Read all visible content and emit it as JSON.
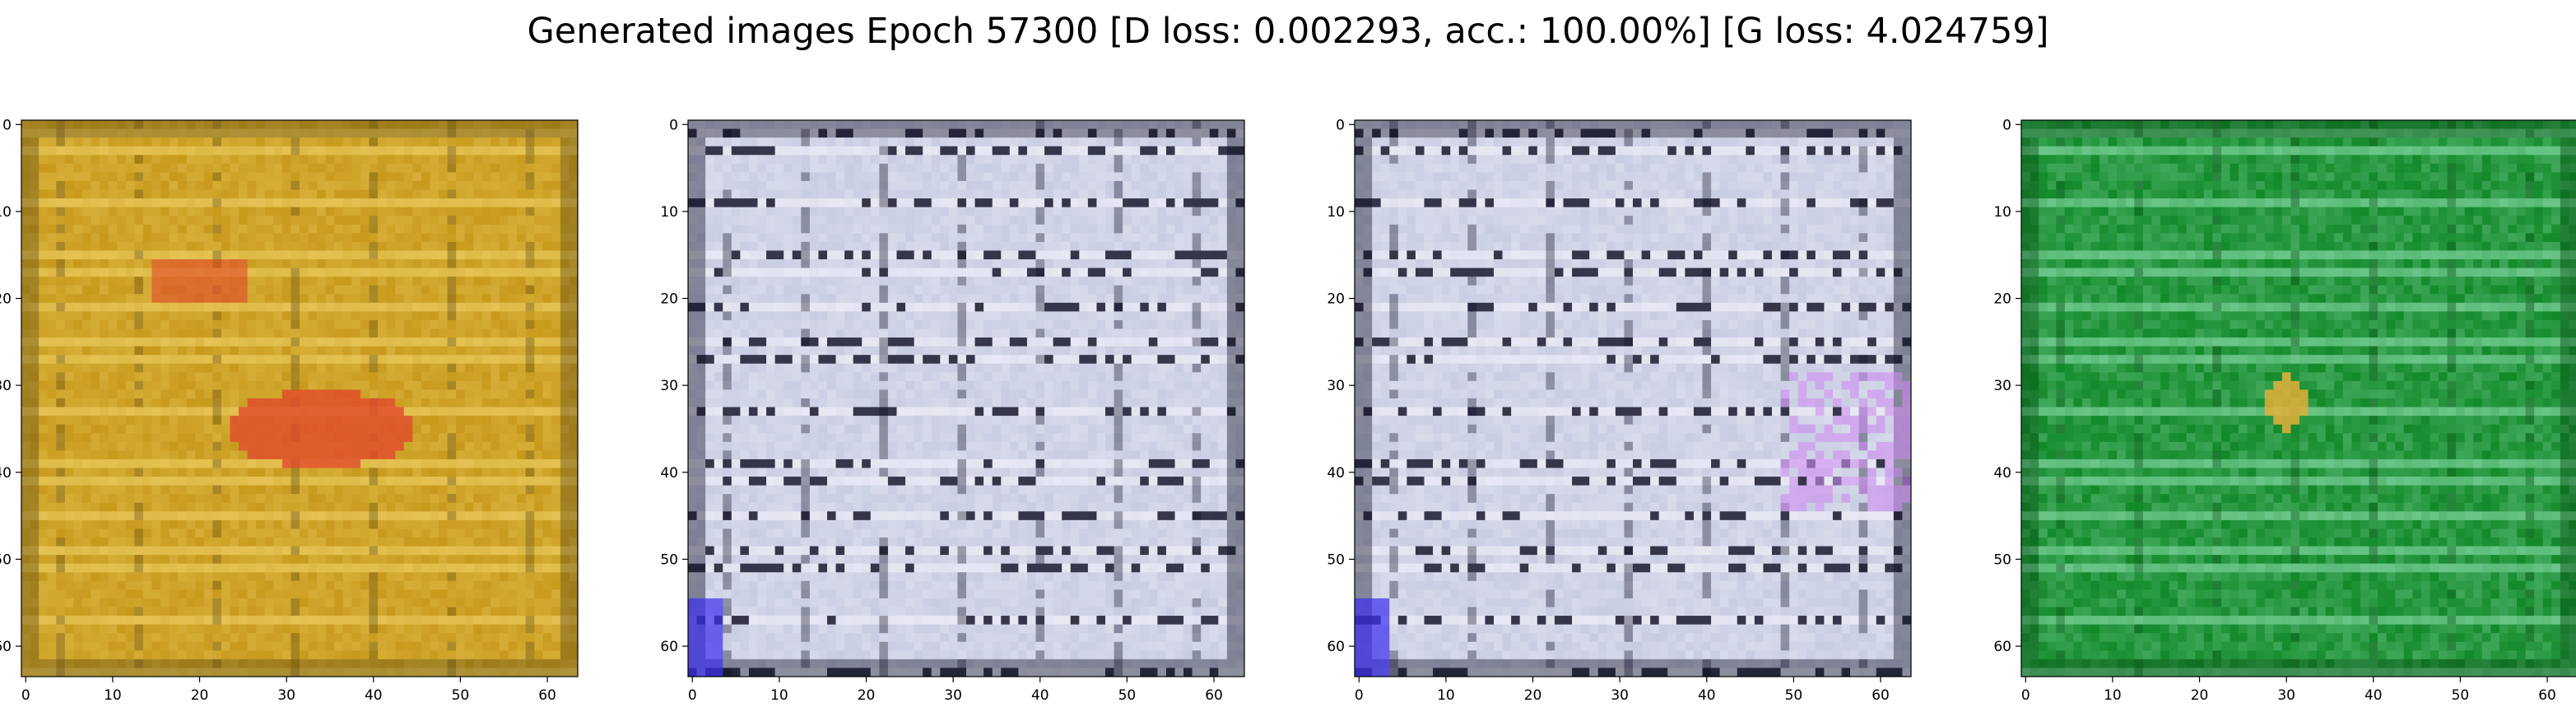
{
  "figure": {
    "title": "Generated images Epoch 57300 [D loss: 0.002293, acc.: 100.00%] [G loss: 4.024759]"
  },
  "axes": {
    "x_ticks": [
      "0",
      "10",
      "20",
      "30",
      "40",
      "50",
      "60"
    ],
    "y_ticks": [
      "0",
      "10",
      "20",
      "30",
      "40",
      "50",
      "60"
    ],
    "x_range": [
      -0.5,
      63.5
    ],
    "y_range": [
      -0.5,
      63.5
    ],
    "image_size": 64
  },
  "panels": [
    {
      "name": "generated-image-1",
      "base_color": "#c79a1c",
      "accent_color": "#e2492b",
      "highlight_color": "#f1d36a",
      "shadow_color": "#5e4a12"
    },
    {
      "name": "generated-image-2",
      "base_color": "#c9cde2",
      "accent_color": "#3b2ef0",
      "highlight_color": "#f4f4fa",
      "shadow_color": "#0a0a20"
    },
    {
      "name": "generated-image-3",
      "base_color": "#c9cde2",
      "accent_color": "#3b2ef0",
      "highlight_color": "#f4f4fa",
      "shadow_color": "#0a0a20"
    },
    {
      "name": "generated-image-4",
      "base_color": "#13892a",
      "accent_color": "#e3b03a",
      "highlight_color": "#8fe0b0",
      "shadow_color": "#064a12"
    }
  ]
}
